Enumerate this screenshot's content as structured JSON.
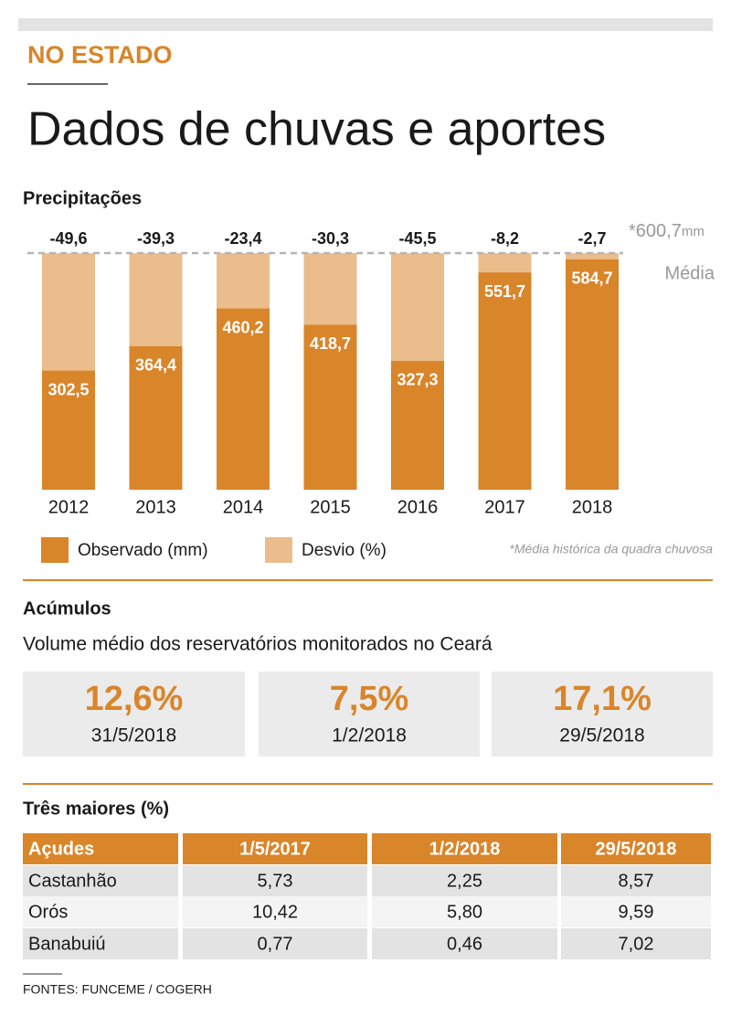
{
  "header": {
    "kicker": "NO ESTADO",
    "title": "Dados de chuvas e aportes"
  },
  "chart_data": {
    "type": "bar",
    "title": "Precipitações",
    "categories": [
      "2012",
      "2013",
      "2014",
      "2015",
      "2016",
      "2017",
      "2018"
    ],
    "series": [
      {
        "name": "Observado (mm)",
        "color": "#d9852a",
        "values": [
          302.5,
          364.4,
          460.2,
          418.7,
          327.3,
          551.7,
          584.7
        ],
        "value_labels": [
          "302,5",
          "364,4",
          "460,2",
          "418,7",
          "327,3",
          "551,7",
          "584,7"
        ]
      },
      {
        "name": "Desvio (%)",
        "color": "#ebbd8c",
        "values": [
          -49.6,
          -39.3,
          -23.4,
          -30.3,
          -45.5,
          -8.2,
          -2.7
        ],
        "value_labels": [
          "-49,6",
          "-39,3",
          "-23,4",
          "-30,3",
          "-45,5",
          "-8,2",
          "-2,7"
        ]
      }
    ],
    "average": {
      "value": 600.7,
      "label": "*600,7",
      "unit": "mm",
      "name": "Média"
    },
    "note": "*Média histórica da quadra chuvosa"
  },
  "acumulos": {
    "title": "Acúmulos",
    "subtitle": "Volume médio dos reservatórios monitorados no Ceará",
    "cards": [
      {
        "value": "12,6%",
        "date": "31/5/2018"
      },
      {
        "value": "7,5%",
        "date": "1/2/2018"
      },
      {
        "value": "17,1%",
        "date": "29/5/2018"
      }
    ]
  },
  "table": {
    "title": "Três maiores (%)",
    "header": [
      "Açudes",
      "1/5/2017",
      "1/2/2018",
      "29/5/2018"
    ],
    "rows": [
      [
        "Castanhão",
        "5,73",
        "2,25",
        "8,57"
      ],
      [
        "Orós",
        "10,42",
        "5,80",
        "9,59"
      ],
      [
        "Banabuiú",
        "0,77",
        "0,46",
        "7,02"
      ]
    ]
  },
  "footer": {
    "source": "FONTES: FUNCEME / COGERH"
  }
}
